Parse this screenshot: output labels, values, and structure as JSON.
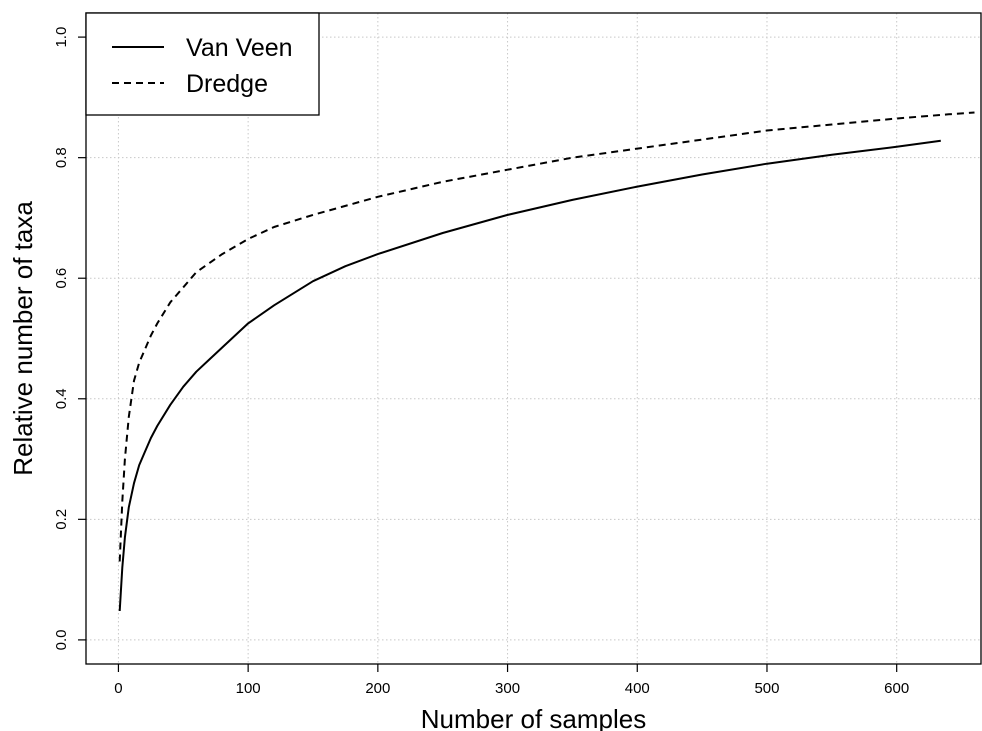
{
  "chart_data": {
    "type": "line",
    "title": "",
    "xlabel": "Number of samples",
    "ylabel": "Relative number of taxa",
    "xlim": [
      -25,
      665
    ],
    "ylim": [
      -0.04,
      1.04
    ],
    "xticks": [
      0,
      100,
      200,
      300,
      400,
      500,
      600
    ],
    "yticks": [
      0.0,
      0.2,
      0.4,
      0.6,
      0.8,
      1.0
    ],
    "xtick_labels": [
      "0",
      "100",
      "200",
      "300",
      "400",
      "500",
      "600"
    ],
    "ytick_labels": [
      "0.0",
      "0.2",
      "0.4",
      "0.6",
      "0.8",
      "1.0"
    ],
    "grid": true,
    "legend_position": "top-left",
    "series": [
      {
        "name": "Van Veen",
        "line_style": "solid",
        "color": "#000000",
        "x": [
          1,
          3,
          5,
          8,
          12,
          16,
          20,
          25,
          30,
          40,
          50,
          60,
          70,
          80,
          100,
          120,
          150,
          175,
          200,
          250,
          300,
          350,
          400,
          450,
          500,
          550,
          600,
          634
        ],
        "y": [
          0.048,
          0.12,
          0.17,
          0.22,
          0.26,
          0.29,
          0.31,
          0.335,
          0.355,
          0.39,
          0.42,
          0.445,
          0.465,
          0.485,
          0.525,
          0.555,
          0.595,
          0.62,
          0.64,
          0.675,
          0.705,
          0.73,
          0.752,
          0.772,
          0.79,
          0.805,
          0.818,
          0.828
        ]
      },
      {
        "name": "Dredge",
        "line_style": "dashed",
        "color": "#000000",
        "x": [
          1,
          3,
          5,
          8,
          12,
          16,
          20,
          25,
          30,
          40,
          50,
          60,
          70,
          80,
          100,
          120,
          150,
          175,
          200,
          250,
          300,
          350,
          400,
          450,
          500,
          550,
          600,
          640,
          660
        ],
        "y": [
          0.13,
          0.23,
          0.3,
          0.37,
          0.43,
          0.46,
          0.48,
          0.505,
          0.525,
          0.56,
          0.585,
          0.61,
          0.625,
          0.64,
          0.665,
          0.685,
          0.705,
          0.72,
          0.735,
          0.76,
          0.78,
          0.8,
          0.815,
          0.83,
          0.845,
          0.855,
          0.865,
          0.872,
          0.875
        ]
      }
    ]
  }
}
